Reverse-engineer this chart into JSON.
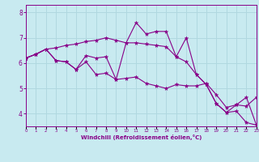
{
  "xlabel": "Windchill (Refroidissement éolien,°C)",
  "background_color": "#c8eaf0",
  "grid_color": "#b0d8e0",
  "line_color": "#880088",
  "x_vals": [
    0,
    1,
    2,
    3,
    4,
    5,
    6,
    7,
    8,
    9,
    10,
    11,
    12,
    13,
    14,
    15,
    16,
    17,
    18,
    19,
    20,
    21,
    22,
    23
  ],
  "line1": [
    6.2,
    6.35,
    6.55,
    6.1,
    6.05,
    5.75,
    6.05,
    5.55,
    5.6,
    5.35,
    5.4,
    5.45,
    5.2,
    5.1,
    5.0,
    5.15,
    5.1,
    5.1,
    5.2,
    4.75,
    4.25,
    4.35,
    4.3,
    4.65
  ],
  "line2": [
    6.2,
    6.35,
    6.55,
    6.1,
    6.05,
    5.75,
    6.3,
    6.2,
    6.25,
    5.35,
    6.8,
    7.6,
    7.15,
    7.25,
    7.25,
    6.25,
    7.0,
    5.55,
    5.15,
    4.4,
    4.05,
    4.35,
    4.65,
    3.55
  ],
  "line3": [
    6.2,
    6.35,
    6.55,
    6.6,
    6.7,
    6.75,
    6.85,
    6.9,
    7.0,
    6.9,
    6.8,
    6.8,
    6.75,
    6.7,
    6.65,
    6.25,
    6.05,
    5.55,
    5.15,
    4.4,
    4.05,
    4.1,
    3.65,
    3.55
  ],
  "ylim": [
    3.5,
    8.3
  ],
  "xlim": [
    0,
    23
  ],
  "yticks": [
    4,
    5,
    6,
    7,
    8
  ],
  "xtick_labels": [
    "0",
    "1",
    "2",
    "3",
    "4",
    "5",
    "6",
    "7",
    "8",
    "9",
    "10",
    "11",
    "12",
    "13",
    "14",
    "15",
    "16",
    "17",
    "18",
    "19",
    "20",
    "21",
    "22",
    "23"
  ]
}
